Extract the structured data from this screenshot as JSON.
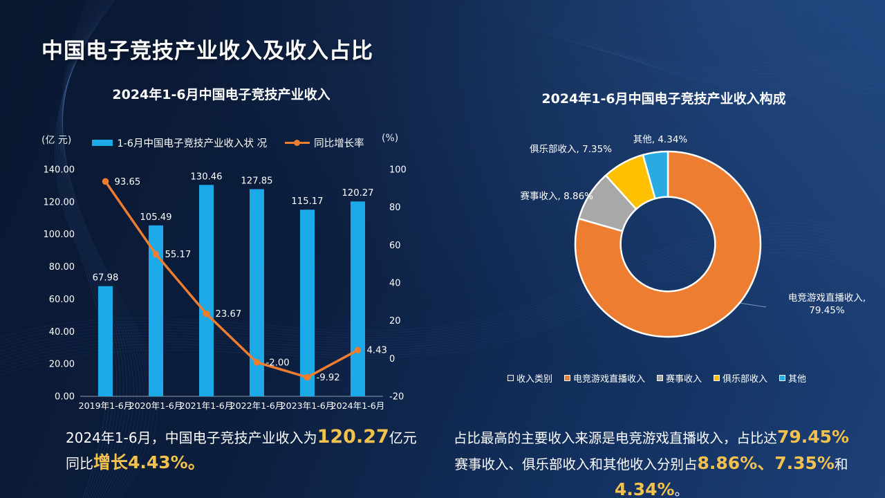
{
  "header": {
    "title": "中国电子竞技产业收入及收入占比"
  },
  "colors": {
    "bar": "#1CA9E8",
    "line": "#ED7D31",
    "gold": "#F2C14E",
    "axis_text": "#FFFFFF"
  },
  "left_chart": {
    "title": "2024年1-6月中国电子竞技产业收入",
    "unit_left": "(亿 元)",
    "unit_right": "(%)",
    "legend_bar": "1-6月中国电子竞技产业收入状 况",
    "legend_line": "同比增长率"
  },
  "right_chart": {
    "title": "2024年1-6月中国电子竞技产业收入构成"
  },
  "chart_data": [
    {
      "type": "bar",
      "title": "2024年1-6月中国电子竞技产业收入",
      "categories": [
        "2019年1-6月",
        "2020年1-6月",
        "2021年1-6月",
        "2022年1-6月",
        "2023年1-6月",
        "2024年1-6月"
      ],
      "series": [
        {
          "name": "1-6月中国电子竞技产业收入状 况",
          "type": "bar",
          "axis": "left",
          "color": "#1CA9E8",
          "values": [
            67.98,
            105.49,
            130.46,
            127.85,
            115.17,
            120.27
          ]
        },
        {
          "name": "同比增长率",
          "type": "line",
          "axis": "right",
          "color": "#ED7D31",
          "values": [
            93.65,
            55.17,
            23.67,
            -2.0,
            -9.92,
            4.43
          ]
        }
      ],
      "xlabel": "",
      "ylabel_left": "(亿 元)",
      "ylabel_right": "(%)",
      "left_axis": {
        "min": 0,
        "max": 140,
        "step": 20,
        "decimals": 2
      },
      "right_axis": {
        "min": -20,
        "max": 100,
        "step": 20,
        "decimals": 0
      },
      "grid": false,
      "legend_position": "top"
    },
    {
      "type": "pie",
      "title": "2024年1-6月中国电子竞技产业收入构成",
      "donut": true,
      "inner_radius_ratio": 0.51,
      "slices": [
        {
          "label": "电竞游戏直播收入",
          "value": 79.45,
          "color": "#ED7D31"
        },
        {
          "label": "赛事收入",
          "value": 8.86,
          "color": "#A8A8A8"
        },
        {
          "label": "俱乐部收入",
          "value": 7.35,
          "color": "#FFC000"
        },
        {
          "label": "其他",
          "value": 4.34,
          "color": "#29ABE2"
        }
      ],
      "legend": [
        {
          "label": "收入类别",
          "color": "#1F3864"
        },
        {
          "label": "电竞游戏直播收入",
          "color": "#ED7D31"
        },
        {
          "label": "赛事收入",
          "color": "#A8A8A8"
        },
        {
          "label": "俱乐部收入",
          "color": "#FFC000"
        },
        {
          "label": "其他",
          "color": "#29ABE2"
        }
      ],
      "legend_position": "bottom"
    }
  ],
  "captions": {
    "left": {
      "l1a": "2024年1-6月，中国电子竞技产业收入为",
      "l1b": "120.27",
      "l1c": "亿元",
      "l2a": "同比",
      "l2b": "增长4.43%。"
    },
    "right": {
      "l1a": "占比最高的主要收入来源是电竞游戏直播收入，占比达",
      "l1b": "79.45%",
      "l2a": "赛事收入、俱乐部收入和其他收入分别占",
      "l2b": "8.86%、",
      "l2c": "7.35%",
      "l2d": "和",
      "l2e": "4.34%",
      "l2f": "。"
    }
  }
}
